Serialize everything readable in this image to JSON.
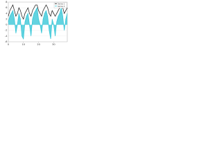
{
  "chart_data": {
    "type": "line",
    "x": [
      0,
      1,
      2,
      3,
      4,
      5,
      6,
      7,
      8,
      9,
      10,
      11,
      12,
      13,
      14,
      15,
      16,
      17,
      18,
      19,
      20,
      21,
      22,
      23,
      24,
      25,
      26,
      27,
      28,
      29,
      30,
      31,
      32,
      33,
      34,
      35,
      36,
      37,
      38,
      39
    ],
    "xlim": [
      0,
      39
    ],
    "xticks": [
      0,
      10,
      20,
      30
    ],
    "ylim": [
      -6,
      8
    ],
    "yticks": [
      -6,
      -4,
      -2,
      0,
      2,
      4,
      6,
      8
    ],
    "grid": true,
    "legend": "upper right",
    "series": [
      {
        "name": "Series 1",
        "color": "#111111",
        "values": [
          3,
          5,
          6,
          7,
          5,
          3,
          4,
          6,
          5,
          3,
          2,
          4,
          5,
          6,
          4,
          3,
          5,
          6,
          7,
          7,
          5,
          4,
          3,
          5,
          6,
          7,
          6,
          4,
          3,
          5,
          4,
          3,
          4,
          5,
          6,
          7,
          6,
          4,
          5,
          6
        ]
      },
      {
        "name": "Series 2",
        "color": "#2ec4d6",
        "fill": true,
        "values": [
          1,
          3,
          4,
          5,
          2,
          -3,
          0,
          4,
          2,
          -4,
          -5,
          1,
          3,
          4,
          0,
          -4,
          2,
          4,
          5,
          6,
          2,
          0,
          -3,
          2,
          4,
          5,
          3,
          -2,
          -5,
          2,
          0,
          -4,
          1,
          3,
          4,
          6,
          3,
          -2,
          2,
          4
        ]
      }
    ]
  }
}
